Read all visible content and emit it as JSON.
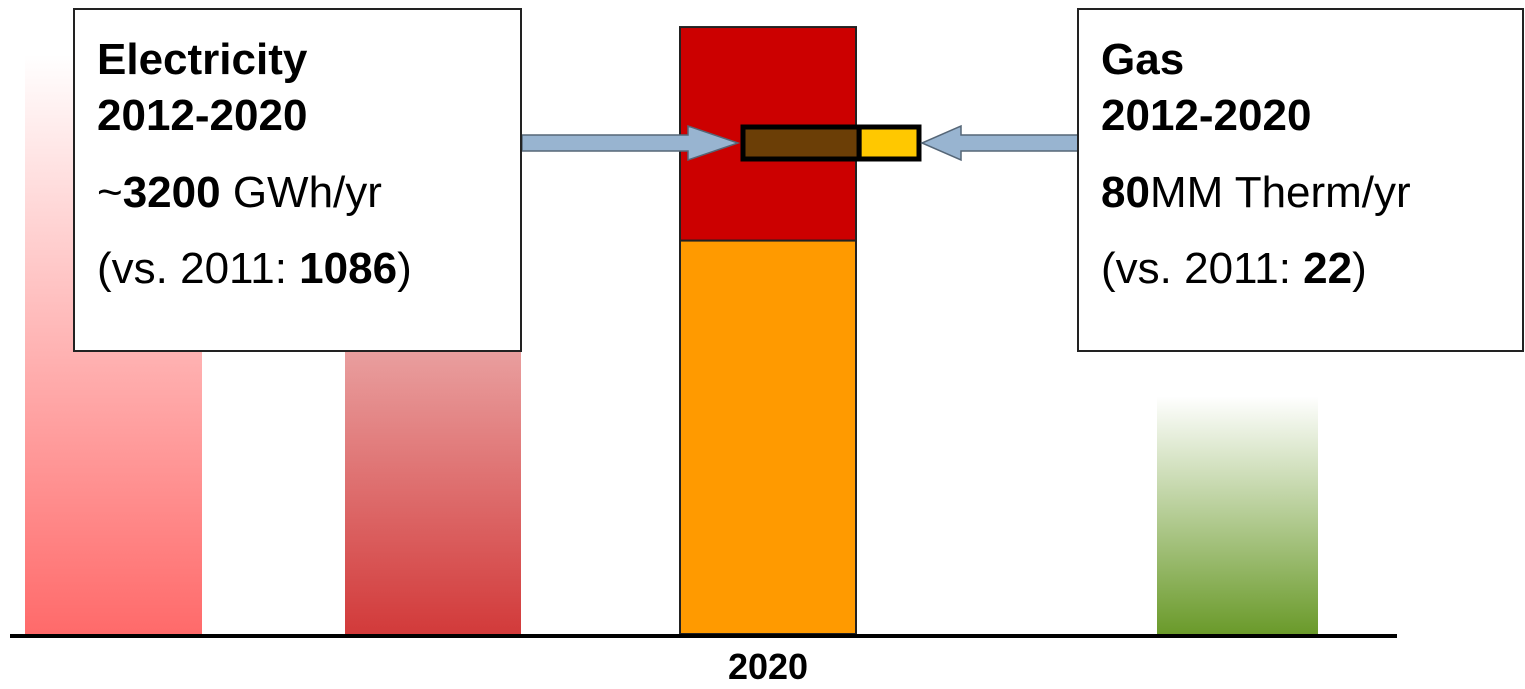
{
  "colors": {
    "bar1_top": "#ffffff",
    "bar1_bottom": "#ff6a6a",
    "bar2_top": "#ffffff",
    "bar2_bottom": "#d23a3a",
    "bar3_lower": "#ff9a00",
    "bar3_upper": "#cc0000",
    "bar4_top": "#ffffff",
    "bar4_bottom": "#6a9a2a",
    "inset_elec": "#6b3e06",
    "inset_gas": "#ffc800",
    "arrow_fill": "#98b4d0",
    "arrow_stroke": "#556677",
    "axis": "#000000"
  },
  "chart_data": {
    "type": "bar",
    "categories": [
      "",
      "",
      "2020",
      ""
    ],
    "tick_labels": [
      "2020"
    ],
    "series": [
      {
        "values": [
          0.95,
          0.91,
          0.645,
          0.39
        ],
        "style": [
          "gradient-red",
          "gradient-dark-red",
          "solid-orange",
          "gradient-green"
        ]
      },
      {
        "values": [
          0,
          0,
          0.35,
          0
        ]
      }
    ],
    "inset": {
      "category": "2020",
      "segments": [
        {
          "value": 0.66
        },
        {
          "value": 0.34
        }
      ]
    },
    "annotations": [
      {
        "id": "electricity",
        "title_lines": [
          "Electricity",
          "2012-2020"
        ],
        "prefix": "~",
        "value": "3200",
        "unit": " GWh/yr",
        "compare_prefix": "(vs. 2011: ",
        "compare_value": "1086",
        "compare_suffix": ")",
        "points_to": "inset-electricity"
      },
      {
        "id": "gas",
        "title_lines": [
          "Gas",
          "2012-2020"
        ],
        "prefix": "",
        "value": "80",
        "unit": "MM Therm/yr",
        "compare_prefix": "(vs. 2011: ",
        "compare_value": "22",
        "compare_suffix": ")",
        "points_to": "inset-gas"
      }
    ],
    "xlabel": "",
    "ylabel": "",
    "title": "",
    "grid": false,
    "legend": "none"
  }
}
